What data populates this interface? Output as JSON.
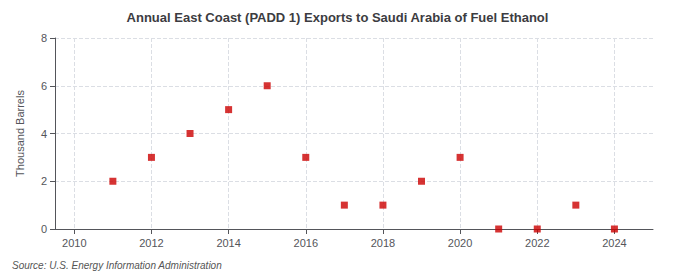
{
  "chart_data": {
    "type": "scatter",
    "title": "Annual East Coast (PADD 1) Exports to Saudi Arabia of Fuel Ethanol",
    "ylabel": "Thousand Barrels",
    "source": "Source: U.S. Energy Information Administration",
    "x": [
      2011,
      2012,
      2013,
      2014,
      2015,
      2016,
      2017,
      2018,
      2019,
      2020,
      2021,
      2022,
      2023,
      2024
    ],
    "values": [
      2,
      3,
      4,
      5,
      6,
      3,
      1,
      1,
      2,
      3,
      0,
      0,
      1,
      0
    ],
    "color": "#cc0000",
    "marker": "square",
    "xlim": [
      2009.5,
      2025
    ],
    "ylim": [
      0,
      8
    ],
    "xticks": [
      2010,
      2012,
      2014,
      2016,
      2018,
      2020,
      2022,
      2024
    ],
    "yticks": [
      0,
      2,
      4,
      6,
      8
    ],
    "grid": true
  }
}
